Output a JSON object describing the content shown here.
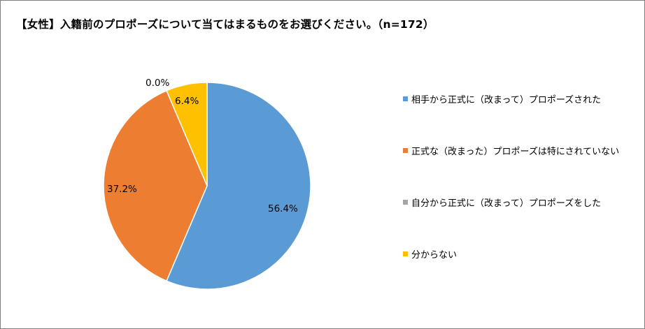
{
  "chart_data": {
    "type": "pie",
    "title": "【女性】入籍前のプロポーズについて当てはまるものをお選びください。（n=172）",
    "slices": [
      {
        "name": "相手から正式に（改まって）プロポーズされた",
        "value": 56.4,
        "label": "56.4%",
        "color": "#5b9bd5"
      },
      {
        "name": "正式な（改まった）プロポーズは特にされていない",
        "value": 37.2,
        "label": "37.2%",
        "color": "#ed7d31"
      },
      {
        "name": "自分から正式に（改まって）プロポーズをした",
        "value": 0.0,
        "label": "0.0%",
        "color": "#a5a5a5"
      },
      {
        "name": "分からない",
        "value": 6.4,
        "label": "6.4%",
        "color": "#ffc000"
      }
    ],
    "legend_position": "right"
  }
}
